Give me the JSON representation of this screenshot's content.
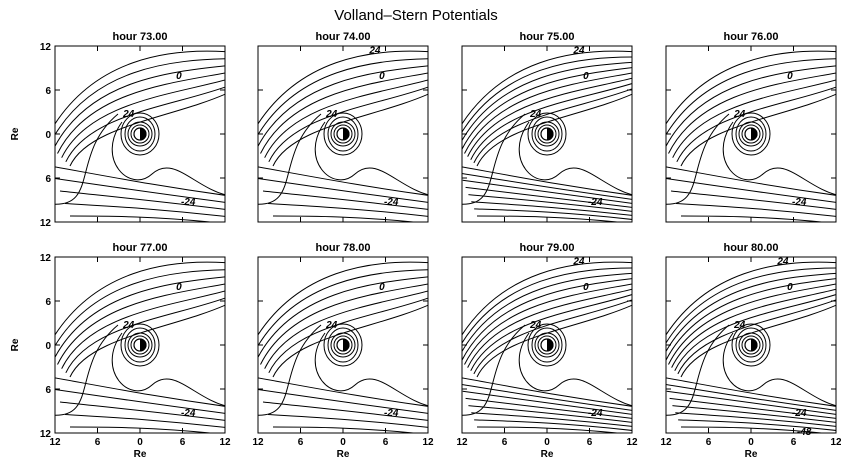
{
  "chart_data": {
    "type": "contour",
    "title": "Volland–Stern Potentials",
    "xlabel": "Re",
    "ylabel": "Re",
    "xticks": [
      "12",
      "6",
      "0",
      "6",
      "12"
    ],
    "yticks": [
      "12",
      "6",
      "0",
      "6",
      "12"
    ],
    "xlim": [
      -12,
      12
    ],
    "ylim": [
      -12,
      12
    ],
    "grid": false,
    "center_marker": "earth-day-night-symbol",
    "panels": [
      {
        "title": "hour 73.00",
        "labels": [
          "0",
          "-24",
          "24"
        ]
      },
      {
        "title": "hour 74.00",
        "labels": [
          "24",
          "0",
          "-24",
          "24"
        ]
      },
      {
        "title": "hour 75.00",
        "labels": [
          "24",
          "0",
          "-24",
          "24"
        ]
      },
      {
        "title": "hour 76.00",
        "labels": [
          "0",
          "-24",
          "24"
        ]
      },
      {
        "title": "hour 77.00",
        "labels": [
          "0",
          "-24",
          "24"
        ]
      },
      {
        "title": "hour 78.00",
        "labels": [
          "0",
          "-24",
          "24"
        ]
      },
      {
        "title": "hour 79.00",
        "labels": [
          "24",
          "0",
          "-24",
          "24"
        ]
      },
      {
        "title": "hour 80.00",
        "labels": [
          "24",
          "0",
          "-24",
          "-48",
          "24"
        ]
      }
    ]
  }
}
